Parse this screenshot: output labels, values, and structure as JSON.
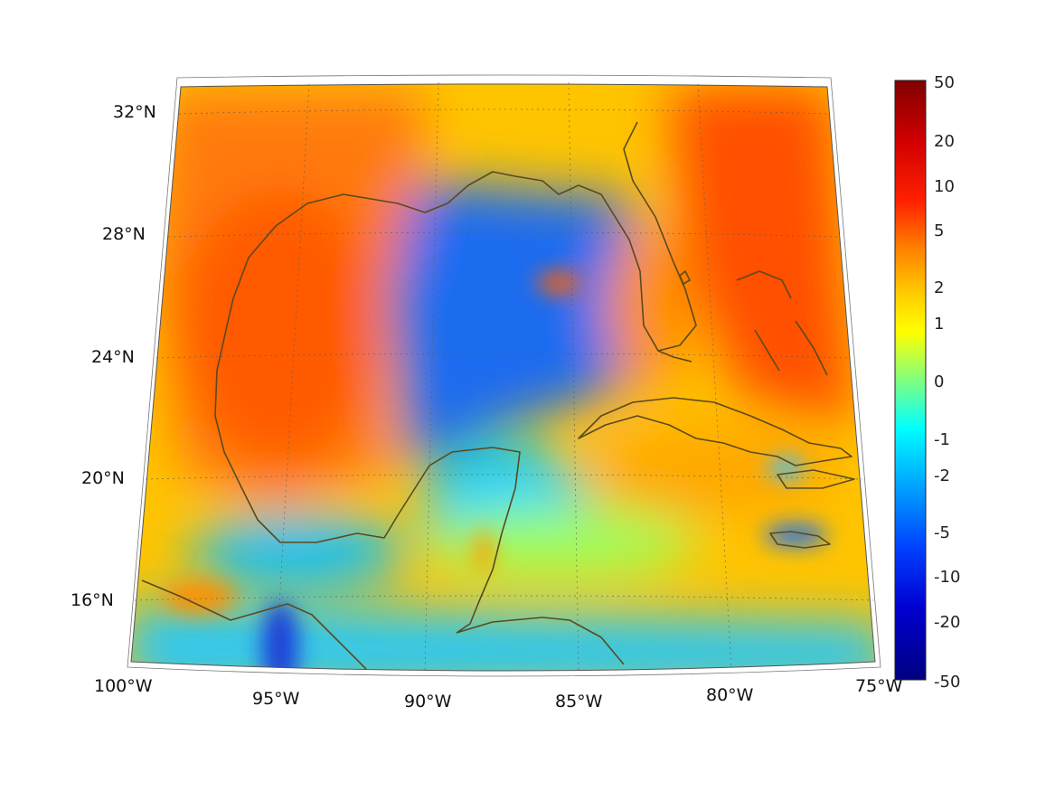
{
  "map": {
    "projection": "conic",
    "longitude_range": [
      -100,
      -75
    ],
    "latitude_range": [
      14,
      33
    ],
    "grid": "dotted",
    "coastline_color": "#5a4a1e",
    "fill_colormap": "jet",
    "lon_tick_labels": [
      "100°W",
      "95°W",
      "90°W",
      "85°W",
      "80°W",
      "75°W"
    ],
    "lat_tick_labels": [
      "16°N",
      "20°N",
      "24°N",
      "28°N",
      "32°N"
    ],
    "regions": [
      {
        "region": "northwest Gulf / Texas",
        "level": "5"
      },
      {
        "region": "central and eastern Gulf",
        "level": "-5"
      },
      {
        "region": "Atlantic east of Florida",
        "level": "10"
      },
      {
        "region": "Caribbean south of Cuba",
        "level": "2"
      },
      {
        "region": "Bay of Campeche / Pacific coast",
        "level": "-2"
      }
    ]
  },
  "colorbar": {
    "labels": [
      "50",
      "20",
      "10",
      "5",
      "2",
      "1",
      "0",
      "-1",
      "-2",
      "-5",
      "-10",
      "-20",
      "-50"
    ],
    "colors": [
      "#800000",
      "#ff0000",
      "#ff8000",
      "#ffff00",
      "#80ff80",
      "#00ffff",
      "#0080ff",
      "#0000ff",
      "#000080"
    ]
  }
}
